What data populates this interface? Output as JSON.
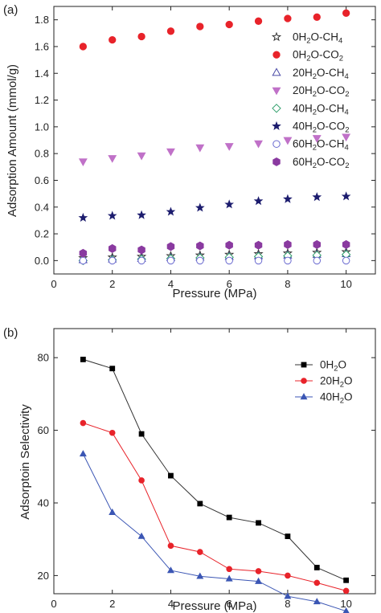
{
  "chart_data": [
    {
      "type": "scatter",
      "panel_label": "(a)",
      "title": "",
      "xlabel": "Pressure (MPa)",
      "ylabel": "Adsorption Amount (mmol/g)",
      "xlim": [
        0,
        11
      ],
      "ylim": [
        -0.1,
        1.9
      ],
      "xticks": [
        "0",
        "2",
        "4",
        "6",
        "8",
        "10"
      ],
      "yticks": [
        "0.0",
        "0.2",
        "0.4",
        "0.6",
        "0.8",
        "1.0",
        "1.2",
        "1.4",
        "1.6",
        "1.8"
      ],
      "grid": false,
      "legend_position": "right",
      "x": [
        1,
        2,
        3,
        4,
        5,
        6,
        7,
        8,
        9,
        10
      ],
      "series": [
        {
          "name": "0H2O-CH4",
          "label_parts": [
            "0H",
            "2",
            "O-CH",
            "4"
          ],
          "marker": "star-open",
          "color": "#333333",
          "values": [
            0.02,
            0.025,
            0.03,
            0.035,
            0.04,
            0.045,
            0.05,
            0.055,
            0.06,
            0.065
          ]
        },
        {
          "name": "0H2O-CO2",
          "label_parts": [
            "0H",
            "2",
            "O-CO",
            "2"
          ],
          "marker": "circle",
          "color": "#e8232a",
          "values": [
            1.6,
            1.65,
            1.675,
            1.715,
            1.75,
            1.765,
            1.79,
            1.81,
            1.82,
            1.85
          ]
        },
        {
          "name": "20H2O-CH4",
          "label_parts": [
            "20H",
            "2",
            "O-CH",
            "4"
          ],
          "marker": "triangle-open",
          "color": "#4a4aa6",
          "values": [
            0.005,
            0.01,
            0.015,
            0.02,
            0.025,
            0.03,
            0.035,
            0.04,
            0.045,
            0.05
          ]
        },
        {
          "name": "20H2O-CO2",
          "label_parts": [
            "20H",
            "2",
            "O-CO",
            "2"
          ],
          "marker": "triangle-down",
          "color": "#c071c8",
          "values": [
            0.74,
            0.765,
            0.785,
            0.815,
            0.845,
            0.855,
            0.875,
            0.9,
            0.915,
            0.925
          ]
        },
        {
          "name": "40H2O-CH4",
          "label_parts": [
            "40H",
            "2",
            "O-CH",
            "4"
          ],
          "marker": "diamond-open",
          "color": "#2e9e6a",
          "values": [
            0.0,
            0.005,
            0.01,
            0.015,
            0.02,
            0.025,
            0.03,
            0.035,
            0.04,
            0.045
          ]
        },
        {
          "name": "40H2O-CO2",
          "label_parts": [
            "40H",
            "2",
            "O-CO",
            "2"
          ],
          "marker": "star",
          "color": "#1c1c6e",
          "values": [
            0.32,
            0.335,
            0.34,
            0.365,
            0.395,
            0.42,
            0.445,
            0.46,
            0.475,
            0.48
          ]
        },
        {
          "name": "60H2O-CH4",
          "label_parts": [
            "60H",
            "2",
            "O-CH",
            "4"
          ],
          "marker": "circle-open",
          "color": "#6a6ad0",
          "values": [
            0.0,
            0.0,
            0.0,
            0.0,
            0.0,
            0.0,
            0.0,
            0.0,
            0.0,
            0.0
          ]
        },
        {
          "name": "60H2O-CO2",
          "label_parts": [
            "60H",
            "2",
            "O-CO",
            "2"
          ],
          "marker": "hexagon",
          "color": "#8a3aa0",
          "values": [
            0.055,
            0.09,
            0.08,
            0.105,
            0.11,
            0.115,
            0.115,
            0.12,
            0.12,
            0.12
          ]
        }
      ]
    },
    {
      "type": "line",
      "panel_label": "(b)",
      "title": "",
      "xlabel": "Pressure (MPa)",
      "ylabel": "Adsorptoin Selectivity",
      "xlim": [
        0,
        11
      ],
      "ylim": [
        15,
        88
      ],
      "xticks": [
        "0",
        "2",
        "4",
        "6",
        "8",
        "10"
      ],
      "yticks": [
        "20",
        "40",
        "60",
        "80"
      ],
      "grid": false,
      "legend_position": "top-right",
      "x": [
        1,
        2,
        3,
        4,
        5,
        6,
        7,
        8,
        9,
        10
      ],
      "series": [
        {
          "name": "0H2O",
          "label_parts": [
            "0H",
            "2",
            "O"
          ],
          "marker": "square",
          "color": "#000000",
          "line_color": "#333333",
          "values": [
            79.5,
            77.0,
            59.0,
            47.5,
            39.8,
            36.0,
            34.5,
            30.8,
            22.2,
            18.7
          ]
        },
        {
          "name": "20H2O",
          "label_parts": [
            "20H",
            "2",
            "O"
          ],
          "marker": "circle",
          "color": "#e8232a",
          "line_color": "#e8232a",
          "values": [
            62.0,
            59.3,
            46.2,
            28.2,
            26.5,
            21.8,
            21.2,
            20.0,
            18.0,
            15.8
          ]
        },
        {
          "name": "40H2O",
          "label_parts": [
            "40H",
            "2",
            "O"
          ],
          "marker": "triangle",
          "color": "#3b56b4",
          "line_color": "#3b56b4",
          "values": [
            53.5,
            37.4,
            30.8,
            21.4,
            19.8,
            19.1,
            18.4,
            14.3,
            12.8,
            10.2
          ]
        }
      ]
    }
  ]
}
